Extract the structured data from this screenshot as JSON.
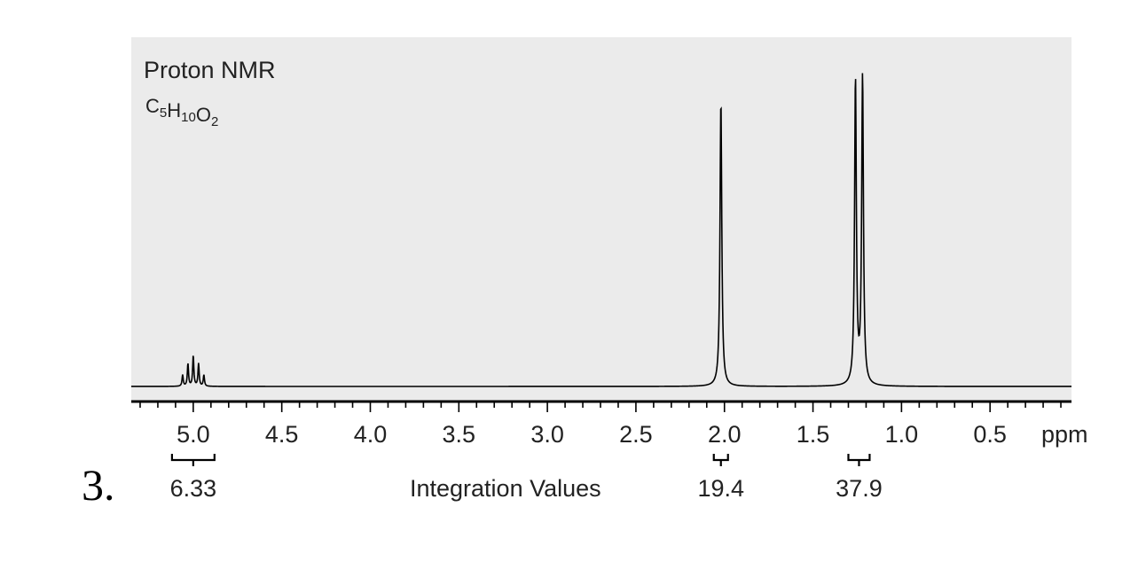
{
  "question_number": "3.",
  "chart_data": {
    "type": "line",
    "title": "Proton NMR",
    "formula": {
      "parts": [
        {
          "text": "C",
          "sub": "5"
        },
        {
          "text": "H",
          "sub": "10"
        },
        {
          "text": "O",
          "sub": "2"
        }
      ]
    },
    "xlabel": "ppm",
    "x_reversed": true,
    "xlim": [
      5.35,
      0.04
    ],
    "ylim": [
      0,
      1.0
    ],
    "grid": false,
    "colors": {
      "plot_background": "#ebebeb",
      "line": "#000000",
      "axis": "#000000"
    },
    "ticks": {
      "major": [
        5.0,
        4.5,
        4.0,
        3.5,
        3.0,
        2.5,
        2.0,
        1.5,
        1.0,
        0.5
      ],
      "major_labels": [
        "5.0",
        "4.5",
        "4.0",
        "3.5",
        "3.0",
        "2.5",
        "2.0",
        "1.5",
        "1.0",
        "0.5"
      ],
      "minor_step": 0.1
    },
    "peaks": [
      {
        "center": 5.06,
        "height": 0.035,
        "width": 0.004
      },
      {
        "center": 5.03,
        "height": 0.07,
        "width": 0.004
      },
      {
        "center": 5.0,
        "height": 0.095,
        "width": 0.004
      },
      {
        "center": 4.97,
        "height": 0.07,
        "width": 0.004
      },
      {
        "center": 4.94,
        "height": 0.035,
        "width": 0.004
      },
      {
        "center": 2.02,
        "height": 0.88,
        "width": 0.006
      },
      {
        "center": 1.26,
        "height": 0.94,
        "width": 0.006
      },
      {
        "center": 1.22,
        "height": 0.95,
        "width": 0.006
      }
    ],
    "integration": {
      "label": "Integration Values",
      "groups": [
        {
          "from": 5.12,
          "to": 4.88,
          "value": "6.33"
        },
        {
          "from": 2.06,
          "to": 1.98,
          "value": "19.4"
        },
        {
          "from": 1.3,
          "to": 1.18,
          "value": "37.9"
        }
      ]
    }
  }
}
